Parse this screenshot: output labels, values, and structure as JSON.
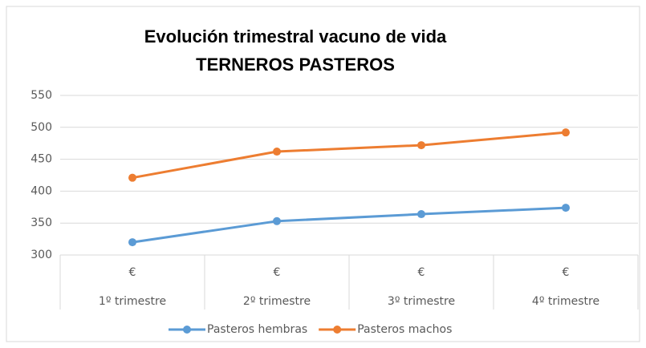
{
  "chart_data": {
    "type": "line",
    "title": [
      "Evolución trimestral vacuno de vida",
      "TERNEROS PASTEROS"
    ],
    "categories": [
      "1º trimestre",
      "2º trimestre",
      "3º trimestre",
      "4º trimestre"
    ],
    "category_units": [
      "€",
      "€",
      "€",
      "€"
    ],
    "series": [
      {
        "name": "Pasteros hembras",
        "color": "#5b9bd5",
        "values": [
          320,
          353,
          364,
          374
        ]
      },
      {
        "name": "Pasteros machos",
        "color": "#ed7d31",
        "values": [
          421,
          462,
          472,
          492
        ]
      }
    ],
    "ylim": [
      300,
      550
    ],
    "yticks": [
      300,
      350,
      400,
      450,
      500,
      550
    ],
    "grid": true,
    "legend": "bottom"
  }
}
